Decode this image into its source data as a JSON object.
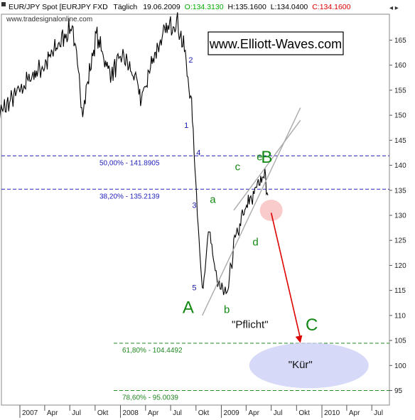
{
  "header": {
    "title": "EUR/JPY Spot [EURJPY FXD",
    "interval": "Täglich",
    "date": "19.06.2009",
    "open": "O:134.3130",
    "high": "H:135.1600",
    "low": "L:134.0400",
    "close": "C:134.1600",
    "colors": {
      "open": "#00aa00",
      "close": "#dd0000"
    }
  },
  "source": "www.tradesignalonline.com",
  "brand": "www.Elliott-Waves.com",
  "chart_data": {
    "type": "line",
    "y_ticks": [
      95,
      100,
      105,
      110,
      115,
      120,
      125,
      130,
      135,
      140,
      145,
      150,
      155,
      160,
      165
    ],
    "ylim": [
      92,
      171
    ],
    "x_ticks": [
      "2007",
      "Apr",
      "Jul",
      "Okt",
      "2008",
      "Apr",
      "Jul",
      "Okt",
      "2009",
      "Apr",
      "Jul",
      "Okt",
      "2010",
      "Apr",
      "Jul"
    ],
    "series": [
      {
        "x": [
          "2006-10-01",
          "2006-11-15",
          "2007-01-01",
          "2007-02-15",
          "2007-04-01",
          "2007-05-20",
          "2007-07-10",
          "2007-08-17",
          "2007-10-05",
          "2007-11-26",
          "2008-01-10",
          "2008-02-25",
          "2008-03-17",
          "2008-05-01",
          "2008-06-15",
          "2008-07-23",
          "2008-08-20",
          "2008-09-15",
          "2008-10-24",
          "2008-11-15",
          "2008-12-10",
          "2009-01-21",
          "2009-02-15",
          "2009-03-15",
          "2009-04-15",
          "2009-05-15",
          "2009-06-05",
          "2009-06-19"
        ],
        "y": [
          149,
          152,
          155,
          158,
          160,
          164,
          168,
          151,
          166,
          158,
          162,
          157,
          153,
          162,
          167,
          169,
          163,
          152,
          114,
          128,
          118,
          113,
          124,
          129,
          133,
          136,
          139,
          134
        ]
      }
    ],
    "fib_levels": [
      {
        "label": "50,00% - 141.8905",
        "value": 141.8905,
        "color": "#2222bb"
      },
      {
        "label": "38,20% - 135.2139",
        "value": 135.2139,
        "color": "#2222bb"
      },
      {
        "label": "61,80% - 104.4492",
        "value": 104.4492,
        "color": "#228822"
      },
      {
        "label": "78,60% - 95.0039",
        "value": 95.0039,
        "color": "#228822"
      }
    ],
    "wedge_lines": [
      {
        "from": [
          "2008-10-24",
          110
        ],
        "to": [
          "2009-10-15",
          151.5
        ]
      },
      {
        "from": [
          "2009-02-15",
          131
        ],
        "to": [
          "2009-10-15",
          149
        ]
      }
    ],
    "forecast_arrow": {
      "from": [
        "2009-07-01",
        130.5
      ],
      "to": [
        "2009-10-15",
        104.5
      ]
    },
    "highlight_circle": {
      "center": [
        "2009-07-01",
        131
      ],
      "label": ""
    },
    "target_ellipse": {
      "center": [
        "2009-11-15",
        100
      ]
    },
    "wave_labels": [
      {
        "text": "1",
        "x": "2008-08-27",
        "y": 147.5,
        "style": "blue"
      },
      {
        "text": "2",
        "x": "2008-09-12",
        "y": 160.5,
        "style": "blue"
      },
      {
        "text": "3",
        "x": "2008-09-25",
        "y": 131.5,
        "style": "blue"
      },
      {
        "text": "4",
        "x": "2008-10-10",
        "y": 142,
        "style": "blue"
      },
      {
        "text": "5",
        "x": "2008-09-25",
        "y": 115,
        "style": "blue"
      },
      {
        "text": "a",
        "x": "2008-12-01",
        "y": 132.5,
        "style": "green-s"
      },
      {
        "text": "b",
        "x": "2009-01-21",
        "y": 110.5,
        "style": "green-s"
      },
      {
        "text": "c",
        "x": "2009-03-01",
        "y": 139,
        "style": "green-s"
      },
      {
        "text": "d",
        "x": "2009-05-05",
        "y": 124,
        "style": "green-s"
      },
      {
        "text": "e",
        "x": "2009-05-20",
        "y": 141,
        "style": "green-s"
      },
      {
        "text": "A",
        "x": "2008-09-03",
        "y": 110.5,
        "style": "green-l"
      },
      {
        "text": "B",
        "x": "2009-06-15",
        "y": 140.5,
        "style": "green-l"
      },
      {
        "text": "C",
        "x": "2009-11-25",
        "y": 107,
        "style": "green-l"
      }
    ],
    "annotations": [
      {
        "text": "\"Pflicht\"",
        "x": "2009-04-15",
        "y": 107.5
      },
      {
        "text": "\"Kür\"",
        "x": "2009-10-15",
        "y": 99.5
      }
    ]
  }
}
